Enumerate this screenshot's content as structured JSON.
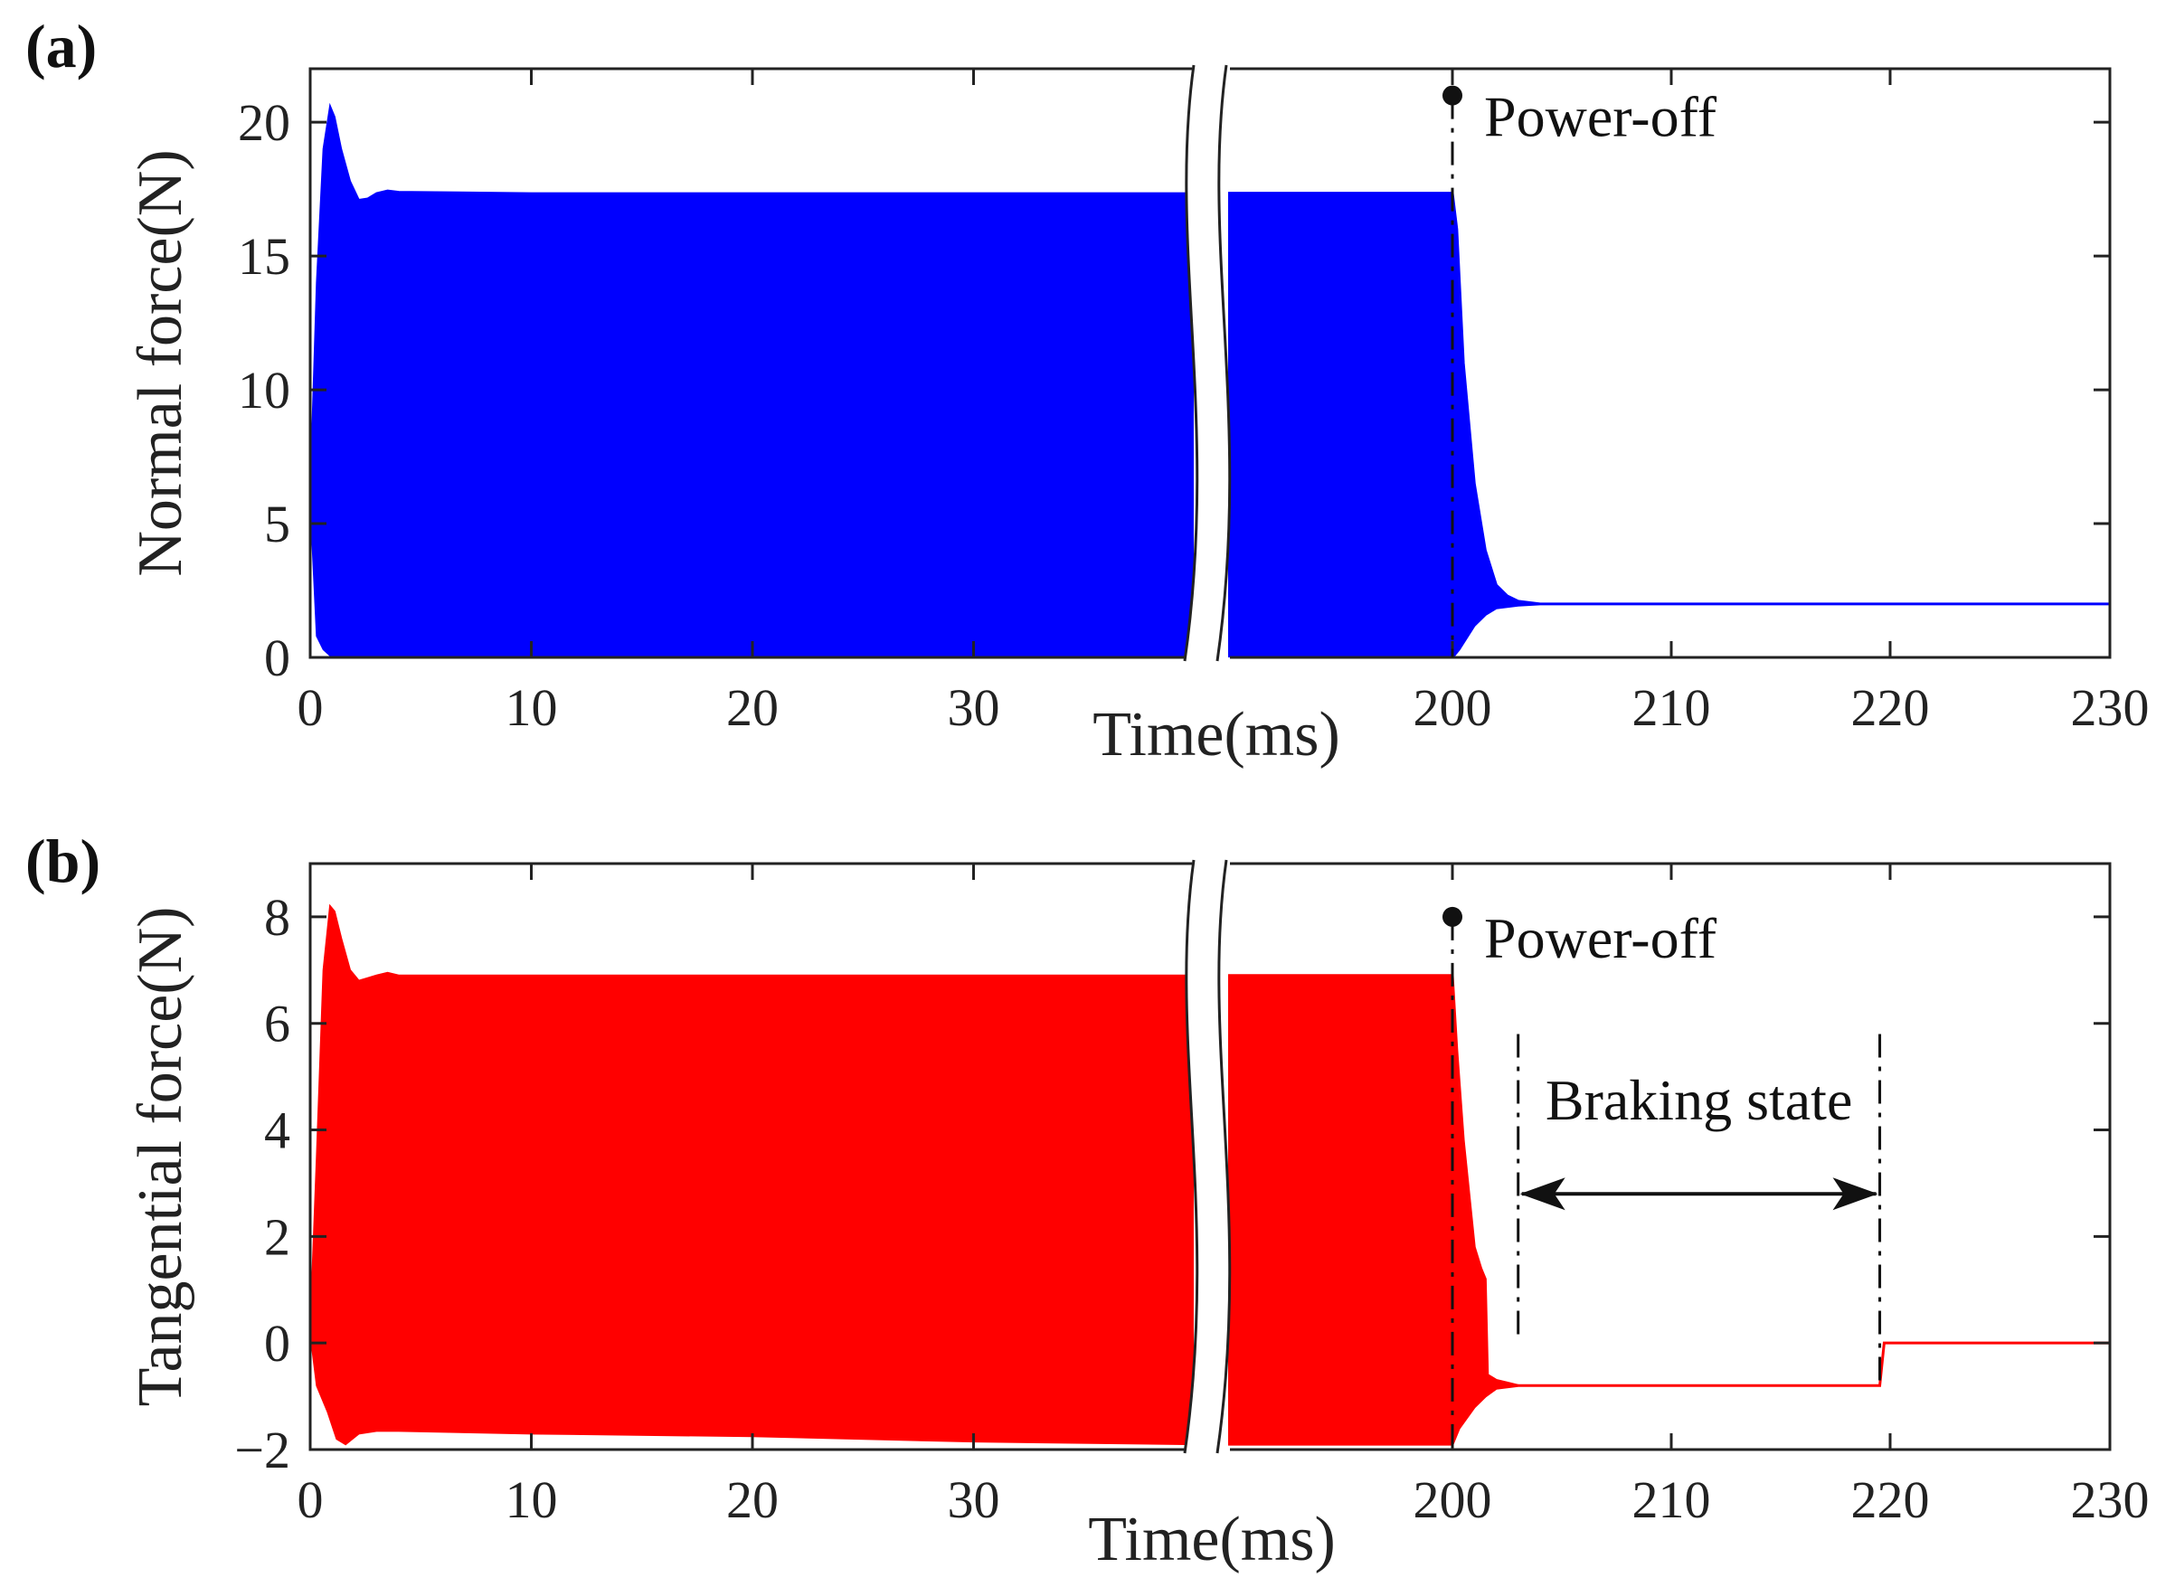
{
  "chart_data": [
    {
      "type": "area",
      "panel_label": "(a)",
      "title": "",
      "xlabel": "Time(ms)",
      "ylabel": "Normal force(N)",
      "ylim": [
        0,
        22
      ],
      "xlim_left": [
        0,
        40
      ],
      "xlim_right": [
        200,
        230
      ],
      "axis_break": true,
      "xticks": [
        "0",
        "10",
        "20",
        "30",
        "200",
        "210",
        "220",
        "230"
      ],
      "yticks": [
        "0",
        "5",
        "10",
        "15",
        "20"
      ],
      "grid": false,
      "color": "#0000ff",
      "series": [
        {
          "name": "Normal force envelope upper",
          "x": [
            0,
            0.3,
            0.6,
            0.9,
            1.1,
            1.4,
            1.8,
            2.2,
            2.6,
            3.0,
            3.5,
            4.0,
            10,
            20,
            30,
            40,
            200,
            200.2,
            200.5,
            201,
            201.5,
            202,
            202.5,
            203,
            204,
            205,
            230
          ],
          "values": [
            6,
            14,
            19,
            20.6,
            20.2,
            19.0,
            17.8,
            17.1,
            17.15,
            17.35,
            17.45,
            17.4,
            17.35,
            17.35,
            17.35,
            17.35,
            17.35,
            16.0,
            11.0,
            6.5,
            4.0,
            2.7,
            2.3,
            2.1,
            2.0,
            2.0,
            2.0
          ]
        },
        {
          "name": "Normal force envelope lower",
          "x": [
            0,
            0.3,
            0.6,
            1.0,
            40,
            200,
            200.3,
            201,
            201.5,
            202,
            203,
            204,
            230
          ],
          "values": [
            6,
            0.8,
            0.3,
            0,
            0,
            0,
            0.3,
            1.2,
            1.6,
            1.85,
            1.95,
            2.0,
            2.0
          ]
        }
      ],
      "annotations": [
        {
          "text": "Power-off",
          "x": 200,
          "y": 21
        }
      ]
    },
    {
      "type": "area",
      "panel_label": "(b)",
      "title": "",
      "xlabel": "Time(ms)",
      "ylabel": "Tangential force(N)",
      "ylim": [
        -2,
        9
      ],
      "xlim_left": [
        0,
        40
      ],
      "xlim_right": [
        200,
        230
      ],
      "axis_break": true,
      "xticks": [
        "0",
        "10",
        "20",
        "30",
        "200",
        "210",
        "220",
        "230"
      ],
      "yticks": [
        "−2",
        "0",
        "2",
        "4",
        "6",
        "8"
      ],
      "grid": false,
      "color": "#ff0000",
      "series": [
        {
          "name": "Tangential force envelope upper",
          "x": [
            0,
            0.3,
            0.6,
            0.9,
            1.1,
            1.4,
            1.8,
            2.2,
            2.6,
            3.0,
            3.5,
            4.0,
            10,
            20,
            30,
            40,
            200,
            200.2,
            200.5,
            201,
            201.3,
            201.5,
            201.6,
            202,
            202.5,
            203,
            204,
            219.5,
            219.7,
            230
          ],
          "values": [
            0.2,
            3.5,
            7.0,
            8.2,
            8.1,
            7.6,
            7.0,
            6.8,
            6.85,
            6.9,
            6.95,
            6.9,
            6.9,
            6.9,
            6.9,
            6.9,
            6.9,
            5.5,
            3.8,
            1.8,
            1.4,
            1.2,
            -0.6,
            -0.7,
            -0.75,
            -0.8,
            -0.8,
            -0.8,
            0,
            0
          ]
        },
        {
          "name": "Tangential force envelope lower",
          "x": [
            0,
            0.3,
            0.8,
            1.2,
            1.6,
            2.2,
            3,
            4,
            10,
            20,
            30,
            40,
            200,
            200.3,
            201,
            201.5,
            202,
            203,
            204,
            219.5,
            219.7,
            230
          ],
          "values": [
            0.2,
            -0.8,
            -1.3,
            -1.8,
            -1.9,
            -1.7,
            -1.65,
            -1.65,
            -1.7,
            -1.75,
            -1.85,
            -1.9,
            -1.9,
            -1.6,
            -1.2,
            -1.0,
            -0.85,
            -0.8,
            -0.8,
            -0.8,
            0,
            0
          ]
        }
      ],
      "annotations": [
        {
          "text": "Power-off",
          "x": 200,
          "y": 8
        },
        {
          "text": "Braking state",
          "x_start": 203,
          "x_end": 219.5
        }
      ]
    }
  ]
}
